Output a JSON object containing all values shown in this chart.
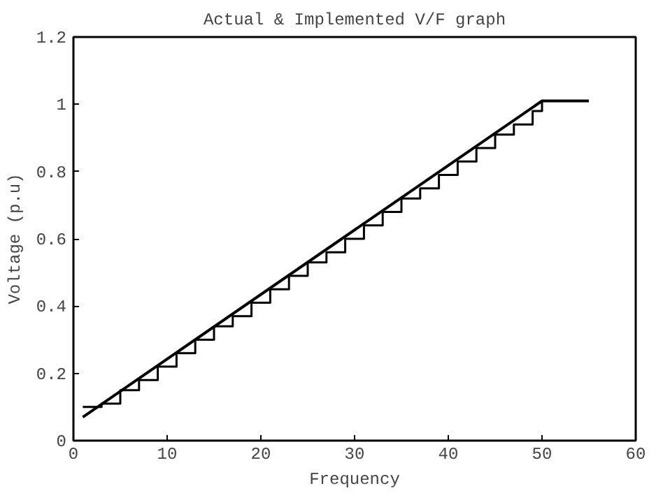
{
  "chart_data": {
    "type": "line",
    "title": "Actual & Implemented V/F graph",
    "xlabel": "Frequency",
    "ylabel": "Voltage (p.u)",
    "xlim": [
      0,
      60
    ],
    "xticks": [
      0,
      10,
      20,
      30,
      40,
      50,
      60
    ],
    "ylim": [
      0,
      1.2
    ],
    "yticks": [
      0,
      0.2,
      0.4,
      0.6,
      0.8,
      1,
      1.2
    ],
    "grid": false,
    "series": [
      {
        "color": "#000000",
        "x": [
          1,
          50,
          55
        ],
        "values": [
          0.07,
          1.01,
          1.01
        ]
      },
      {
        "type": "step",
        "color": "#000000",
        "x": [
          1,
          3,
          5,
          7,
          9,
          11,
          13,
          15,
          17,
          19,
          21,
          23,
          25,
          27,
          29,
          31,
          33,
          35,
          37,
          39,
          41,
          43,
          45,
          47,
          49,
          50,
          55
        ],
        "values": [
          0.1,
          0.11,
          0.15,
          0.18,
          0.22,
          0.26,
          0.3,
          0.34,
          0.37,
          0.41,
          0.45,
          0.49,
          0.53,
          0.56,
          0.6,
          0.64,
          0.68,
          0.72,
          0.75,
          0.79,
          0.83,
          0.87,
          0.91,
          0.94,
          0.98,
          1.01,
          1.01
        ]
      }
    ]
  }
}
